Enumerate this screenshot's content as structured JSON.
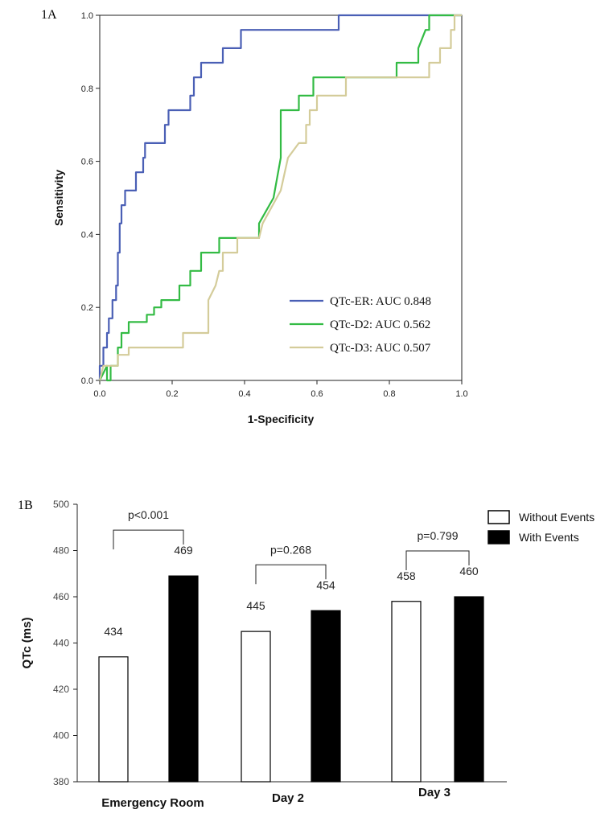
{
  "chart_data": [
    {
      "panel": "1A",
      "type": "line",
      "xlabel": "1-Specificity",
      "ylabel": "Sensitivity",
      "xlim": [
        0,
        1
      ],
      "ylim": [
        0,
        1
      ],
      "x_ticks": [
        "0.0",
        "0.2",
        "0.4",
        "0.6",
        "0.8",
        "1.0"
      ],
      "y_ticks": [
        "0.0",
        "0.2",
        "0.4",
        "0.6",
        "0.8",
        "1.0"
      ],
      "grid": false,
      "legend_position": "bottom-right",
      "series": [
        {
          "name": "QTc-ER: AUC 0.848",
          "color": "#4a5fb5",
          "points": [
            [
              0,
              0
            ],
            [
              0,
              0.04
            ],
            [
              0.01,
              0.04
            ],
            [
              0.01,
              0.09
            ],
            [
              0.02,
              0.09
            ],
            [
              0.02,
              0.13
            ],
            [
              0.025,
              0.13
            ],
            [
              0.025,
              0.17
            ],
            [
              0.035,
              0.17
            ],
            [
              0.035,
              0.22
            ],
            [
              0.045,
              0.22
            ],
            [
              0.045,
              0.26
            ],
            [
              0.05,
              0.26
            ],
            [
              0.05,
              0.35
            ],
            [
              0.055,
              0.35
            ],
            [
              0.055,
              0.43
            ],
            [
              0.06,
              0.43
            ],
            [
              0.06,
              0.48
            ],
            [
              0.07,
              0.48
            ],
            [
              0.07,
              0.52
            ],
            [
              0.1,
              0.52
            ],
            [
              0.1,
              0.57
            ],
            [
              0.12,
              0.57
            ],
            [
              0.12,
              0.61
            ],
            [
              0.125,
              0.61
            ],
            [
              0.125,
              0.65
            ],
            [
              0.18,
              0.65
            ],
            [
              0.18,
              0.7
            ],
            [
              0.19,
              0.7
            ],
            [
              0.19,
              0.74
            ],
            [
              0.25,
              0.74
            ],
            [
              0.25,
              0.78
            ],
            [
              0.26,
              0.78
            ],
            [
              0.26,
              0.83
            ],
            [
              0.28,
              0.83
            ],
            [
              0.28,
              0.87
            ],
            [
              0.34,
              0.87
            ],
            [
              0.34,
              0.91
            ],
            [
              0.39,
              0.91
            ],
            [
              0.39,
              0.96
            ],
            [
              0.66,
              0.96
            ],
            [
              0.66,
              1.0
            ],
            [
              1,
              1
            ]
          ]
        },
        {
          "name": "QTc-D2: AUC 0.562",
          "color": "#33bb44",
          "points": [
            [
              0,
              0
            ],
            [
              0.01,
              0.02
            ],
            [
              0.02,
              0.04
            ],
            [
              0.02,
              0.0
            ],
            [
              0.03,
              0.0
            ],
            [
              0.03,
              0.04
            ],
            [
              0.05,
              0.04
            ],
            [
              0.05,
              0.09
            ],
            [
              0.06,
              0.09
            ],
            [
              0.06,
              0.13
            ],
            [
              0.08,
              0.13
            ],
            [
              0.08,
              0.16
            ],
            [
              0.13,
              0.16
            ],
            [
              0.13,
              0.18
            ],
            [
              0.15,
              0.18
            ],
            [
              0.15,
              0.2
            ],
            [
              0.17,
              0.2
            ],
            [
              0.17,
              0.22
            ],
            [
              0.22,
              0.22
            ],
            [
              0.22,
              0.26
            ],
            [
              0.25,
              0.26
            ],
            [
              0.25,
              0.3
            ],
            [
              0.28,
              0.3
            ],
            [
              0.28,
              0.35
            ],
            [
              0.33,
              0.35
            ],
            [
              0.33,
              0.39
            ],
            [
              0.35,
              0.39
            ],
            [
              0.35,
              0.39
            ],
            [
              0.44,
              0.39
            ],
            [
              0.44,
              0.43
            ],
            [
              0.48,
              0.5
            ],
            [
              0.5,
              0.61
            ],
            [
              0.5,
              0.74
            ],
            [
              0.55,
              0.74
            ],
            [
              0.55,
              0.78
            ],
            [
              0.59,
              0.78
            ],
            [
              0.59,
              0.83
            ],
            [
              0.82,
              0.83
            ],
            [
              0.82,
              0.87
            ],
            [
              0.88,
              0.87
            ],
            [
              0.88,
              0.91
            ],
            [
              0.9,
              0.96
            ],
            [
              0.91,
              0.96
            ],
            [
              0.91,
              1.0
            ],
            [
              1,
              1
            ]
          ]
        },
        {
          "name": "QTc-D3: AUC 0.507",
          "color": "#d4cc9a",
          "points": [
            [
              0,
              0
            ],
            [
              0.01,
              0.04
            ],
            [
              0.05,
              0.04
            ],
            [
              0.05,
              0.07
            ],
            [
              0.08,
              0.07
            ],
            [
              0.08,
              0.09
            ],
            [
              0.23,
              0.09
            ],
            [
              0.23,
              0.13
            ],
            [
              0.3,
              0.13
            ],
            [
              0.3,
              0.22
            ],
            [
              0.32,
              0.26
            ],
            [
              0.33,
              0.3
            ],
            [
              0.34,
              0.3
            ],
            [
              0.34,
              0.35
            ],
            [
              0.38,
              0.35
            ],
            [
              0.38,
              0.39
            ],
            [
              0.44,
              0.39
            ],
            [
              0.45,
              0.43
            ],
            [
              0.5,
              0.52
            ],
            [
              0.52,
              0.61
            ],
            [
              0.55,
              0.65
            ],
            [
              0.57,
              0.65
            ],
            [
              0.57,
              0.7
            ],
            [
              0.58,
              0.7
            ],
            [
              0.58,
              0.74
            ],
            [
              0.6,
              0.74
            ],
            [
              0.6,
              0.78
            ],
            [
              0.68,
              0.78
            ],
            [
              0.68,
              0.83
            ],
            [
              0.91,
              0.83
            ],
            [
              0.91,
              0.87
            ],
            [
              0.94,
              0.87
            ],
            [
              0.94,
              0.91
            ],
            [
              0.97,
              0.91
            ],
            [
              0.97,
              0.96
            ],
            [
              0.98,
              0.96
            ],
            [
              0.98,
              1.0
            ],
            [
              1,
              1
            ]
          ]
        }
      ]
    },
    {
      "panel": "1B",
      "type": "bar",
      "ylabel": "QTc (ms)",
      "ylim": [
        380,
        500
      ],
      "y_ticks": [
        "380",
        "400",
        "420",
        "440",
        "460",
        "480",
        "500"
      ],
      "categories": [
        "Emergency Room",
        "Day 2",
        "Day 3"
      ],
      "legend_position": "top-right",
      "series": [
        {
          "name": "Without Events",
          "fill": "#ffffff",
          "values": [
            434,
            445,
            458
          ]
        },
        {
          "name": "With Events",
          "fill": "#000000",
          "values": [
            469,
            454,
            460
          ]
        }
      ],
      "value_labels": [
        [
          "434",
          "469"
        ],
        [
          "445",
          "454"
        ],
        [
          "458",
          "460"
        ]
      ],
      "p_values": [
        "p<0.001",
        "p=0.268",
        "p=0.799"
      ]
    }
  ]
}
